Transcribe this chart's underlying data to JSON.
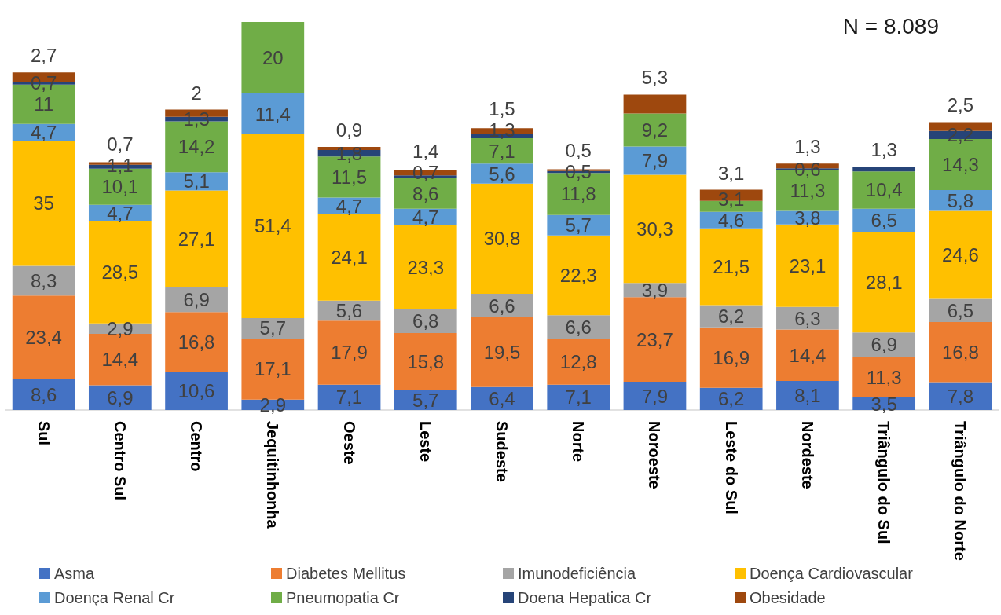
{
  "chart_data": {
    "type": "bar",
    "stacked": true,
    "legend": "bottom",
    "annotations": [
      "N = 8.089"
    ],
    "categories": [
      "Sul",
      "Centro Sul",
      "Centro",
      "Jequitinhonha",
      "Oeste",
      "Leste",
      "Sudeste",
      "Norte",
      "Noroeste",
      "Leste do Sul",
      "Nordeste",
      "Triângulo do Sul",
      "Triângulo do Norte"
    ],
    "series": [
      {
        "name": "Asma",
        "color": "#4472c4",
        "values": [
          8.6,
          6.9,
          10.6,
          2.9,
          7.1,
          5.7,
          6.4,
          7.1,
          7.9,
          6.2,
          8.1,
          3.5,
          7.8
        ],
        "value_labels": [
          "8,6",
          "6,9",
          "10,6",
          "2,9",
          "7,1",
          "5,7",
          "6,4",
          "7,1",
          "7,9",
          "6,2",
          "8,1",
          "3,5",
          "7,8"
        ]
      },
      {
        "name": "Diabetes Mellitus",
        "color": "#ed7d31",
        "values": [
          23.4,
          14.4,
          16.8,
          17.1,
          17.9,
          15.8,
          19.5,
          12.8,
          23.7,
          16.9,
          14.4,
          11.3,
          16.8
        ],
        "value_labels": [
          "23,4",
          "14,4",
          "16,8",
          "17,1",
          "17,9",
          "15,8",
          "19,5",
          "12,8",
          "23,7",
          "16,9",
          "14,4",
          "11,3",
          "16,8"
        ]
      },
      {
        "name": "Imunodeficiência",
        "color": "#a5a5a5",
        "values": [
          8.3,
          2.9,
          6.9,
          5.7,
          5.6,
          6.8,
          6.6,
          6.6,
          3.9,
          6.2,
          6.3,
          6.9,
          6.5
        ],
        "value_labels": [
          "8,3",
          "2,9",
          "6,9",
          "5,7",
          "5,6",
          "6,8",
          "6,6",
          "6,6",
          "3,9",
          "6,2",
          "6,3",
          "6,9",
          "6,5"
        ]
      },
      {
        "name": "Doença Cardiovascular",
        "color": "#ffc000",
        "values": [
          35,
          28.5,
          27.1,
          51.4,
          24.1,
          23.3,
          30.8,
          22.3,
          30.3,
          21.5,
          23.1,
          28.1,
          24.6
        ],
        "value_labels": [
          "35",
          "28,5",
          "27,1",
          "51,4",
          "24,1",
          "23,3",
          "30,8",
          "22,3",
          "30,3",
          "21,5",
          "23,1",
          "28,1",
          "24,6"
        ]
      },
      {
        "name": "Doença Renal Cr",
        "color": "#5b9bd5",
        "values": [
          4.7,
          4.7,
          5.1,
          11.4,
          4.7,
          4.7,
          5.6,
          5.7,
          7.9,
          4.6,
          3.8,
          6.5,
          5.8
        ],
        "value_labels": [
          "4,7",
          "4,7",
          "5,1",
          "11,4",
          "4,7",
          "4,7",
          "5,6",
          "5,7",
          "7,9",
          "4,6",
          "3,8",
          "6,5",
          "5,8"
        ]
      },
      {
        "name": "Pneumopatia Cr",
        "color": "#70ad47",
        "values": [
          11,
          10.1,
          14.2,
          20,
          11.5,
          8.6,
          7.1,
          11.8,
          9.2,
          3.1,
          11.3,
          10.4,
          14.3
        ],
        "value_labels": [
          "11",
          "10,1",
          "14,2",
          "20",
          "11,5",
          "8,6",
          "7,1",
          "11,8",
          "9,2",
          "3,1",
          "11,3",
          "10,4",
          "14,3"
        ]
      },
      {
        "name": "Doena Hepatica Cr",
        "color": "#264478",
        "values": [
          0.7,
          1.1,
          1.3,
          null,
          1.8,
          0.7,
          1.3,
          0.5,
          null,
          null,
          0.6,
          1.3,
          2.2
        ],
        "value_labels": [
          "0,7",
          "1,1",
          "1,3",
          null,
          "1,8",
          "0,7",
          "1,3",
          "0,5",
          null,
          null,
          "0,6",
          "1,3",
          "2,2"
        ]
      },
      {
        "name": "Obesidade",
        "color": "#9e480e",
        "values": [
          2.7,
          0.7,
          2,
          null,
          0.9,
          1.4,
          1.5,
          0.5,
          5.3,
          3.1,
          1.3,
          null,
          2.5
        ],
        "value_labels": [
          "2,7",
          "0,7",
          "2",
          null,
          "0,9",
          "1,4",
          "1,5",
          "0,5",
          "5,3",
          "3,1",
          "1,3",
          null,
          "2,5"
        ]
      }
    ]
  }
}
